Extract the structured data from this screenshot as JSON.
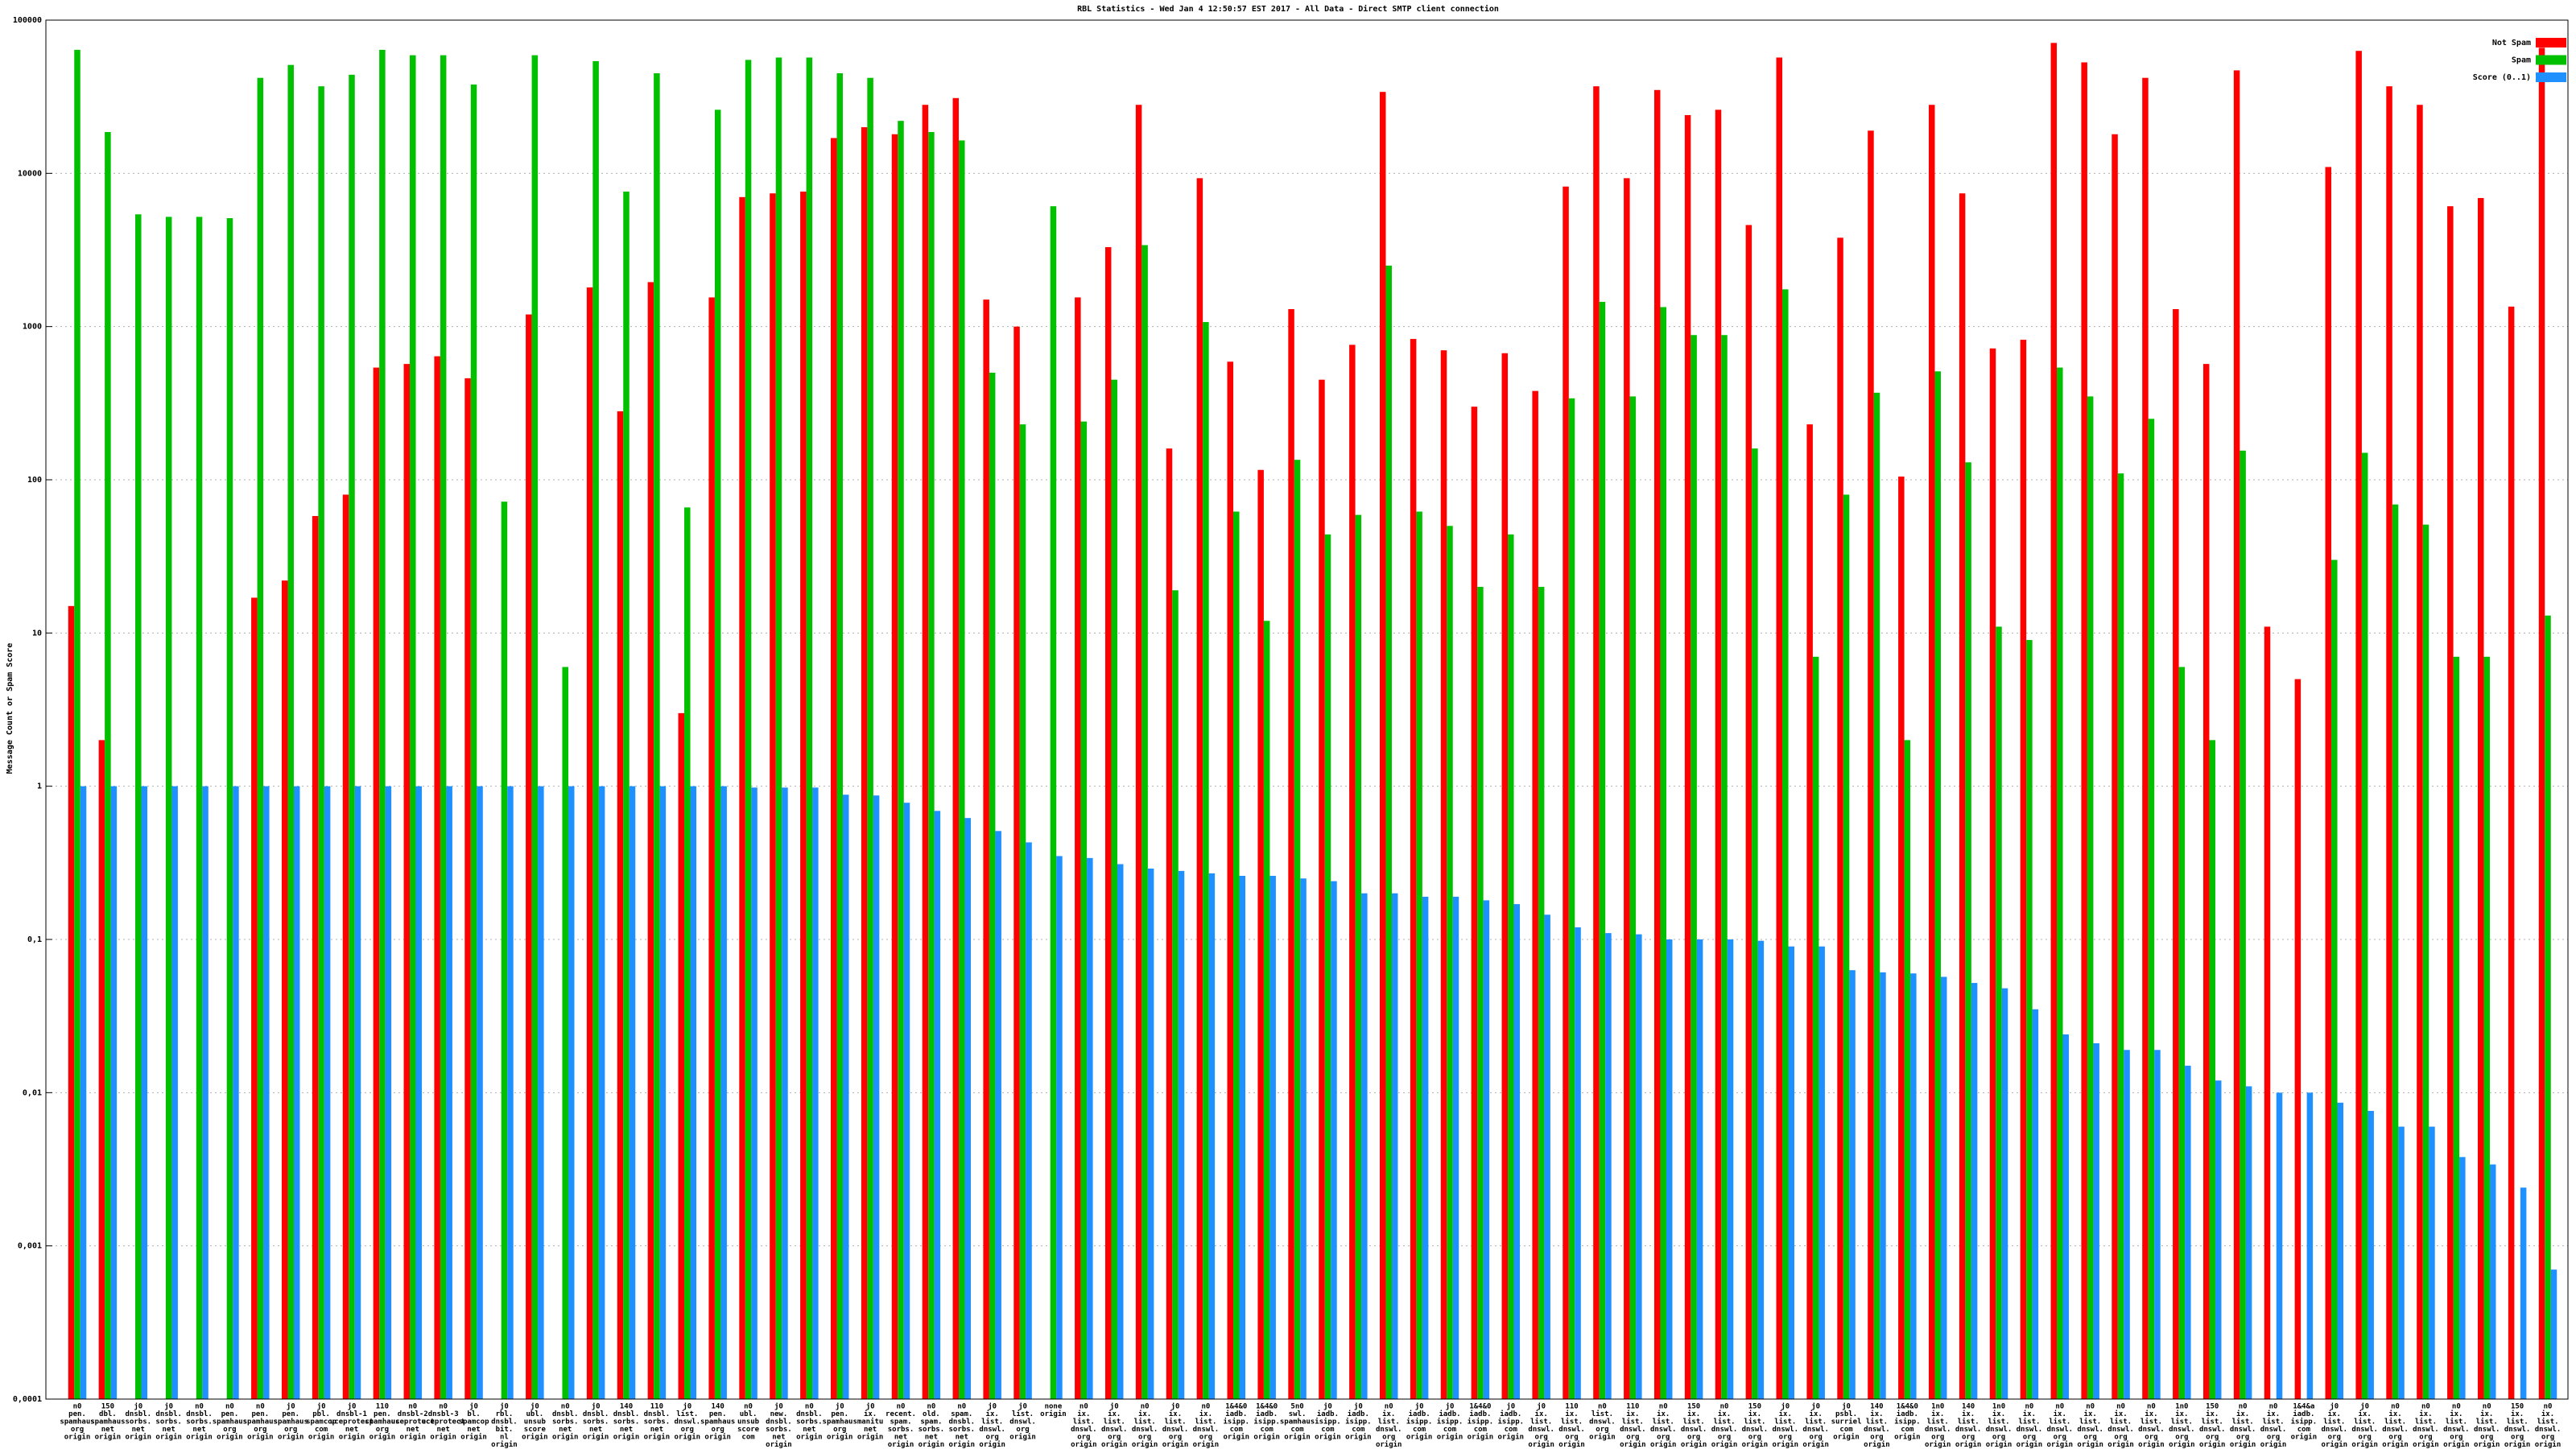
{
  "chart_data": {
    "type": "bar",
    "title": "RBL Statistics - Wed Jan  4 12:50:57 EST 2017 - All Data - Direct SMTP client connection",
    "ylabel": "Message Count or Spam Score",
    "log": true,
    "grid": true,
    "legend": "top-right",
    "ylim": [
      0.0001,
      100000
    ],
    "yticks": [
      {
        "value": 0.0001,
        "label": "0,0001"
      },
      {
        "value": 0.001,
        "label": "0,001"
      },
      {
        "value": 0.01,
        "label": "0,01"
      },
      {
        "value": 0.1,
        "label": "0,1"
      },
      1,
      10,
      100,
      1000,
      10000,
      100000
    ],
    "categories": [
      [
        "n0",
        "pen.",
        "spamhaus",
        "org",
        "origin"
      ],
      [
        "150",
        "dbl.",
        "spamhaus",
        "net",
        "origin"
      ],
      [
        "j0",
        "dnsbl.",
        "sorbs.",
        "net",
        "origin"
      ],
      [
        "j0",
        "dnsbl.",
        "sorbs.",
        "net",
        "origin"
      ],
      [
        "n0",
        "dnsbl.",
        "sorbs.",
        "net",
        "origin"
      ],
      [
        "n0",
        "pen.",
        "spamhaus",
        "org",
        "origin"
      ],
      [
        "n0",
        "pen.",
        "spamhaus",
        "org",
        "origin"
      ],
      [
        "j0",
        "pen.",
        "spamhaus",
        "org",
        "origin"
      ],
      [
        "j0",
        "pbl.",
        "spamcop",
        "com",
        "origin"
      ],
      [
        "j0",
        "dnsbl-1",
        "uceprotect",
        "net",
        "origin"
      ],
      [
        "110",
        "pen.",
        "spamhaus",
        "org",
        "origin"
      ],
      [
        "n0",
        "dnsbl-2",
        "uceprotect",
        "net",
        "origin"
      ],
      [
        "n0",
        "dnsbl-3",
        "uceprotect",
        "net",
        "origin"
      ],
      [
        "j0",
        "bl.",
        "spamcop",
        "net",
        "origin"
      ],
      [
        "j0",
        "rbl.",
        "dnsbl.",
        "bit.",
        "nl",
        "origin"
      ],
      [
        "j0",
        "ubl.",
        "unsub",
        "score",
        "origin"
      ],
      [
        "n0",
        "dnsbl.",
        "sorbs.",
        "net",
        "origin"
      ],
      [
        "j0",
        "dnsbl.",
        "sorbs.",
        "net",
        "origin"
      ],
      [
        "140",
        "dnsbl.",
        "sorbs.",
        "net",
        "origin"
      ],
      [
        "110",
        "dnsbl.",
        "sorbs.",
        "net",
        "origin"
      ],
      [
        "j0",
        "list.",
        "dnswl.",
        "org",
        "origin"
      ],
      [
        "140",
        "pen.",
        "spamhaus",
        "org",
        "origin"
      ],
      [
        "n0",
        "ubl.",
        "unsub",
        "score",
        "com"
      ],
      [
        "j0",
        "new.",
        "dnsbl.",
        "sorbs.",
        "net",
        "origin"
      ],
      [
        "n0",
        "dnsbl.",
        "sorbs.",
        "net",
        "origin"
      ],
      [
        "j0",
        "pen.",
        "spamhaus",
        "org",
        "origin"
      ],
      [
        "j0",
        "ix.",
        "manitu",
        "net",
        "origin"
      ],
      [
        "n0",
        "recent.",
        "spam.",
        "sorbs.",
        "net",
        "origin"
      ],
      [
        "n0",
        "old.",
        "spam.",
        "sorbs.",
        "net",
        "origin"
      ],
      [
        "n0",
        "spam.",
        "dnsbl.",
        "sorbs.",
        "net",
        "origin"
      ],
      [
        "j0",
        "ix.",
        "list.",
        "dnswl.",
        "org",
        "origin"
      ],
      [
        "j0",
        "list.",
        "dnswl.",
        "org",
        "origin"
      ],
      [
        "none",
        "origin"
      ],
      [
        "n0",
        "ix.",
        "list.",
        "dnswl.",
        "org",
        "origin"
      ],
      [
        "j0",
        "ix.",
        "list.",
        "dnswl.",
        "org",
        "origin"
      ],
      [
        "n0",
        "ix.",
        "list.",
        "dnswl.",
        "org",
        "origin"
      ],
      [
        "j0",
        "ix.",
        "list.",
        "dnswl.",
        "org",
        "origin"
      ],
      [
        "n0",
        "ix.",
        "list.",
        "dnswl.",
        "org",
        "origin"
      ],
      [
        "1&4&0",
        "iadb.",
        "isipp.",
        "com",
        "origin"
      ],
      [
        "1&4&0",
        "iadb.",
        "isipp.",
        "com",
        "origin"
      ],
      [
        "5n0",
        "swl.",
        "spamhaus",
        "com",
        "origin"
      ],
      [
        "j0",
        "iadb.",
        "isipp.",
        "com",
        "origin"
      ],
      [
        "j0",
        "iadb.",
        "isipp.",
        "com",
        "origin"
      ],
      [
        "n0",
        "ix.",
        "list.",
        "dnswl.",
        "org",
        "origin"
      ],
      [
        "j0",
        "iadb.",
        "isipp.",
        "com",
        "origin"
      ],
      [
        "j0",
        "iadb.",
        "isipp.",
        "com",
        "origin"
      ],
      [
        "1&4&0",
        "iadb.",
        "isipp.",
        "com",
        "origin"
      ],
      [
        "j0",
        "iadb.",
        "isipp.",
        "com",
        "origin"
      ],
      [
        "j0",
        "ix.",
        "list.",
        "dnswl.",
        "org",
        "origin"
      ],
      [
        "110",
        "ix.",
        "list.",
        "dnswl.",
        "org",
        "origin"
      ],
      [
        "n0",
        "list.",
        "dnswl.",
        "org",
        "origin"
      ],
      [
        "110",
        "ix.",
        "list.",
        "dnswl.",
        "org",
        "origin"
      ],
      [
        "n0",
        "ix.",
        "list.",
        "dnswl.",
        "org",
        "origin"
      ],
      [
        "150",
        "ix.",
        "list.",
        "dnswl.",
        "org",
        "origin"
      ],
      [
        "n0",
        "ix.",
        "list.",
        "dnswl.",
        "org",
        "origin"
      ],
      [
        "150",
        "ix.",
        "list.",
        "dnswl.",
        "org",
        "origin"
      ],
      [
        "j0",
        "ix.",
        "list.",
        "dnswl.",
        "org",
        "origin"
      ],
      [
        "j0",
        "ix.",
        "list.",
        "dnswl.",
        "org",
        "origin"
      ],
      [
        "j0",
        "psbl.",
        "surriel",
        "com",
        "origin"
      ],
      [
        "140",
        "ix.",
        "list.",
        "dnswl.",
        "org",
        "origin"
      ],
      [
        "1&4&0",
        "iadb.",
        "isipp.",
        "com",
        "origin"
      ],
      [
        "1n0",
        "ix.",
        "list.",
        "dnswl.",
        "org",
        "origin"
      ],
      [
        "140",
        "ix.",
        "list.",
        "dnswl.",
        "org",
        "origin"
      ],
      [
        "1n0",
        "ix.",
        "list.",
        "dnswl.",
        "org",
        "origin"
      ],
      [
        "n0",
        "ix.",
        "list.",
        "dnswl.",
        "org",
        "origin"
      ],
      [
        "n0",
        "ix.",
        "list.",
        "dnswl.",
        "org",
        "origin"
      ],
      [
        "n0",
        "ix.",
        "list.",
        "dnswl.",
        "org",
        "origin"
      ],
      [
        "n0",
        "ix.",
        "list.",
        "dnswl.",
        "org",
        "origin"
      ],
      [
        "n0",
        "ix.",
        "list.",
        "dnswl.",
        "org",
        "origin"
      ],
      [
        "1n0",
        "ix.",
        "list.",
        "dnswl.",
        "org",
        "origin"
      ],
      [
        "150",
        "ix.",
        "list.",
        "dnswl.",
        "org",
        "origin"
      ],
      [
        "n0",
        "ix.",
        "list.",
        "dnswl.",
        "org",
        "origin"
      ],
      [
        "n0",
        "ix.",
        "list.",
        "dnswl.",
        "org",
        "origin"
      ],
      [
        "1&4&a",
        "iadb.",
        "isipp.",
        "com",
        "origin"
      ],
      [
        "j0",
        "ix.",
        "list.",
        "dnswl.",
        "org",
        "origin"
      ],
      [
        "j0",
        "ix.",
        "list.",
        "dnswl.",
        "org",
        "origin"
      ],
      [
        "n0",
        "ix.",
        "list.",
        "dnswl.",
        "org",
        "origin"
      ],
      [
        "n0",
        "ix.",
        "list.",
        "dnswl.",
        "org",
        "origin"
      ],
      [
        "n0",
        "ix.",
        "list.",
        "dnswl.",
        "org",
        "origin"
      ],
      [
        "n0",
        "ix.",
        "list.",
        "dnswl.",
        "org",
        "origin"
      ],
      [
        "150",
        "ix.",
        "list.",
        "dnswl.",
        "org",
        "origin"
      ],
      [
        "n0",
        "ix.",
        "list.",
        "dnswl.",
        "org",
        "origin"
      ]
    ],
    "series": [
      {
        "name": "Not Spam",
        "color": "#ff0000",
        "values": [
          15,
          2,
          null,
          null,
          null,
          null,
          17,
          22,
          58,
          80,
          540,
          570,
          640,
          460,
          null,
          1200,
          null,
          1800,
          280,
          1950,
          3,
          1550,
          7000,
          7400,
          7600,
          17000,
          20000,
          18000,
          28000,
          31000,
          1500,
          1000,
          null,
          1550,
          3300,
          28000,
          160,
          9300,
          590,
          116,
          1300,
          450,
          760,
          34000,
          830,
          700,
          300,
          670,
          380,
          8200,
          37000,
          9300,
          35000,
          24000,
          26000,
          4600,
          57000,
          230,
          3800,
          19000,
          105,
          28000,
          7400,
          720,
          820,
          71000,
          53000,
          18000,
          42000,
          1300,
          570,
          47000,
          11,
          5,
          11000,
          63000,
          37000,
          28000,
          6100,
          6900,
          1350,
          66000
        ]
      },
      {
        "name": "Spam",
        "color": "#00c000",
        "values": [
          64000,
          18600,
          5400,
          5200,
          5200,
          5100,
          42000,
          51000,
          37000,
          44000,
          64000,
          59000,
          59000,
          38000,
          72,
          59000,
          6,
          54000,
          7600,
          45000,
          66,
          26000,
          55000,
          57000,
          57000,
          45000,
          42000,
          22000,
          18600,
          16400,
          500,
          230,
          6100,
          240,
          450,
          3400,
          19,
          1070,
          62,
          12,
          135,
          44,
          59,
          2500,
          62,
          50,
          20,
          44,
          20,
          340,
          1450,
          350,
          1340,
          880,
          880,
          160,
          1750,
          7,
          80,
          370,
          2,
          510,
          130,
          11,
          9,
          540,
          350,
          110,
          250,
          6,
          2,
          155,
          null,
          null,
          30,
          150,
          69,
          51,
          7,
          7,
          null,
          13
        ]
      },
      {
        "name": "Score (0..1)",
        "color": "#1e90ff",
        "values": [
          1,
          1,
          1,
          1,
          1,
          1,
          1,
          1,
          1,
          1,
          1,
          1,
          1,
          1,
          1,
          1,
          1,
          1,
          1,
          1,
          1,
          1,
          0.98,
          0.98,
          0.98,
          0.88,
          0.87,
          0.78,
          0.69,
          0.62,
          0.51,
          0.43,
          0.35,
          0.34,
          0.31,
          0.29,
          0.28,
          0.27,
          0.26,
          0.26,
          0.25,
          0.24,
          0.2,
          0.2,
          0.19,
          0.19,
          0.18,
          0.17,
          0.145,
          0.12,
          0.11,
          0.108,
          0.1,
          0.1,
          0.1,
          0.098,
          0.09,
          0.09,
          0.063,
          0.061,
          0.06,
          0.057,
          0.052,
          0.048,
          0.035,
          0.024,
          0.021,
          0.019,
          0.019,
          0.015,
          0.012,
          0.011,
          0.01,
          0.01,
          0.0086,
          0.0076,
          0.006,
          0.006,
          0.0038,
          0.0034,
          0.0024,
          0.0007
        ]
      }
    ]
  }
}
